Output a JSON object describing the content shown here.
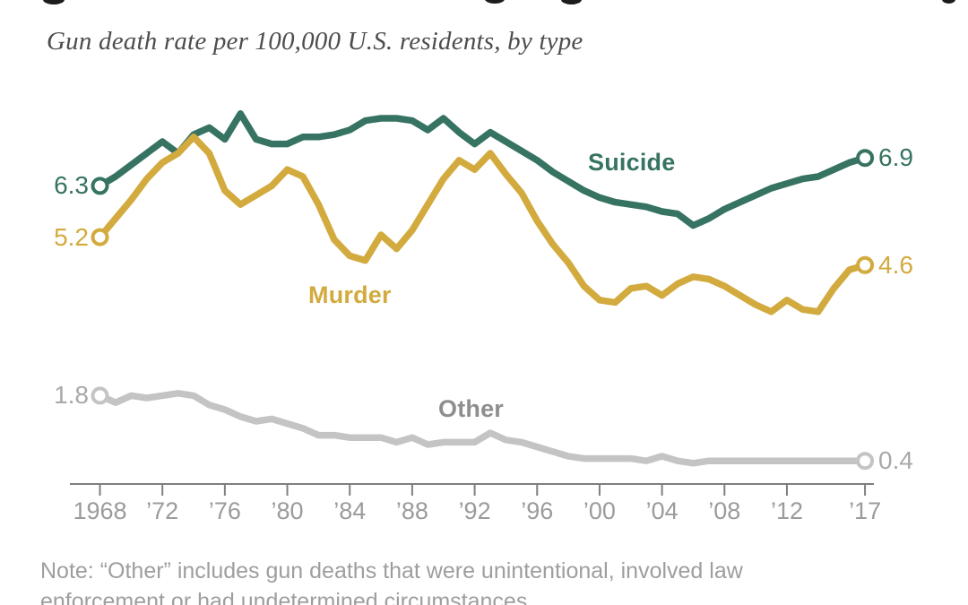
{
  "page": {
    "background": "#ffffff"
  },
  "header": {
    "subtitle": "Gun death rate per 100,000 U.S. residents, by type"
  },
  "chart_data": {
    "type": "line",
    "title": "",
    "subtitle": "Gun death rate per 100,000 U.S. residents, by type",
    "xlabel": "",
    "ylabel": "Gun death rate per 100,000 U.S. residents",
    "grid": false,
    "legend_position": "inline-labels",
    "x_range": [
      1968,
      2017
    ],
    "ylim": [
      0,
      8.5
    ],
    "x": [
      1968,
      1969,
      1970,
      1971,
      1972,
      1973,
      1974,
      1975,
      1976,
      1977,
      1978,
      1979,
      1980,
      1981,
      1982,
      1983,
      1984,
      1985,
      1986,
      1987,
      1988,
      1989,
      1990,
      1991,
      1992,
      1993,
      1994,
      1995,
      1996,
      1997,
      1998,
      1999,
      2000,
      2001,
      2002,
      2003,
      2004,
      2005,
      2006,
      2007,
      2008,
      2009,
      2010,
      2011,
      2012,
      2013,
      2014,
      2015,
      2016,
      2017
    ],
    "x_ticks": [
      {
        "label": "1968",
        "year": 1968
      },
      {
        "label": "’72",
        "year": 1972
      },
      {
        "label": "’76",
        "year": 1976
      },
      {
        "label": "’80",
        "year": 1980
      },
      {
        "label": "’84",
        "year": 1984
      },
      {
        "label": "’88",
        "year": 1988
      },
      {
        "label": "’92",
        "year": 1992
      },
      {
        "label": "’96",
        "year": 1996
      },
      {
        "label": "’00",
        "year": 2000
      },
      {
        "label": "’04",
        "year": 2004
      },
      {
        "label": "’08",
        "year": 2008
      },
      {
        "label": "’12",
        "year": 2012
      },
      {
        "label": "’17",
        "year": 2017
      }
    ],
    "axis_color": "#7f7f7f",
    "tick_label_color": "#9b9b9b",
    "series": [
      {
        "name": "Suicide",
        "color": "#377362",
        "start_label": "6.3",
        "end_label": "6.9",
        "values": [
          6.3,
          6.5,
          6.75,
          7.0,
          7.25,
          7.0,
          7.4,
          7.55,
          7.3,
          7.85,
          7.3,
          7.2,
          7.2,
          7.35,
          7.35,
          7.4,
          7.5,
          7.7,
          7.75,
          7.75,
          7.7,
          7.5,
          7.75,
          7.45,
          7.2,
          7.45,
          7.25,
          7.05,
          6.85,
          6.6,
          6.4,
          6.2,
          6.05,
          5.95,
          5.9,
          5.85,
          5.75,
          5.7,
          5.45,
          5.6,
          5.8,
          5.95,
          6.1,
          6.25,
          6.35,
          6.45,
          6.5,
          6.65,
          6.8,
          6.9
        ]
      },
      {
        "name": "Murder",
        "color": "#d2aa3e",
        "start_label": "5.2",
        "end_label": "4.6",
        "values": [
          5.2,
          5.6,
          6.0,
          6.45,
          6.8,
          7.0,
          7.35,
          7.0,
          6.2,
          5.9,
          6.1,
          6.3,
          6.65,
          6.5,
          5.9,
          5.15,
          4.8,
          4.7,
          5.25,
          4.95,
          5.35,
          5.9,
          6.45,
          6.85,
          6.65,
          7.0,
          6.55,
          6.15,
          5.55,
          5.05,
          4.65,
          4.15,
          3.85,
          3.8,
          4.1,
          4.15,
          3.95,
          4.2,
          4.35,
          4.3,
          4.15,
          3.95,
          3.75,
          3.6,
          3.85,
          3.65,
          3.6,
          4.1,
          4.5,
          4.6
        ]
      },
      {
        "name": "Other",
        "color": "#c4c4c4",
        "label_color": "#8e8e8e",
        "value_label_color": "#a9a9a9",
        "start_label": "1.8",
        "end_label": "0.4",
        "values": [
          1.8,
          1.65,
          1.8,
          1.75,
          1.8,
          1.85,
          1.8,
          1.6,
          1.5,
          1.35,
          1.25,
          1.3,
          1.2,
          1.1,
          0.95,
          0.95,
          0.9,
          0.9,
          0.9,
          0.8,
          0.9,
          0.75,
          0.8,
          0.8,
          0.8,
          1.0,
          0.85,
          0.8,
          0.7,
          0.6,
          0.5,
          0.45,
          0.45,
          0.45,
          0.45,
          0.4,
          0.5,
          0.4,
          0.35,
          0.4,
          0.4,
          0.4,
          0.4,
          0.4,
          0.4,
          0.4,
          0.4,
          0.4,
          0.4,
          0.4
        ]
      }
    ]
  },
  "note": {
    "line1": "Note: “Other” includes gun deaths that were unintentional, involved law",
    "line2": "enforcement or had undetermined circumstances."
  }
}
